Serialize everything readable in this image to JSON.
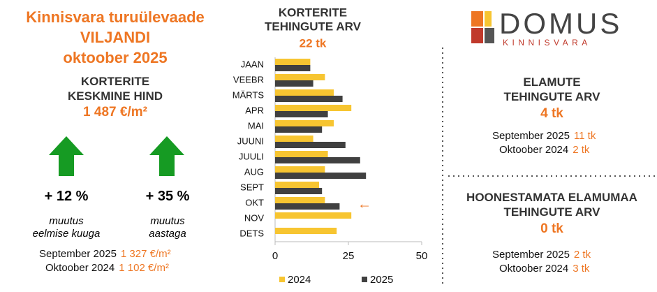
{
  "header": {
    "title_lines": [
      "Kinnisvara turuülevaade",
      "VILJANDI",
      "oktoober 2025"
    ]
  },
  "price": {
    "title_lines": [
      "KORTERITE",
      "KESKMINE HIND"
    ],
    "value": "1 487 €/m²",
    "changes": [
      {
        "value": "+ 12 %",
        "label_lines": [
          "muutus",
          "eelmise kuuga"
        ]
      },
      {
        "value": "+ 35 %",
        "label_lines": [
          "muutus",
          "aastaga"
        ]
      }
    ],
    "comparisons": [
      {
        "label": "September 2025",
        "value": "1 327 €/m²"
      },
      {
        "label": "Oktoober 2024",
        "value": "1 102 €/m²"
      }
    ]
  },
  "logo": {
    "name": "DOMUS",
    "sub": "KINNISVARA"
  },
  "houses": {
    "title_lines": [
      "ELAMUTE",
      "TEHINGUTE ARV"
    ],
    "value": "4 tk",
    "comparisons": [
      {
        "label": "September 2025",
        "value": "11 tk"
      },
      {
        "label": "Oktoober 2024",
        "value": "2 tk"
      }
    ]
  },
  "land": {
    "title_lines": [
      "HOONESTAMATA ELAMUMAA",
      "TEHINGUTE ARV"
    ],
    "value": "0 tk",
    "comparisons": [
      {
        "label": "September 2025",
        "value": "2 tk"
      },
      {
        "label": "Oktoober 2024",
        "value": "3 tk"
      }
    ]
  },
  "chart_data": {
    "type": "hbar",
    "title_lines": [
      "KORTERITE",
      "TEHINGUTE ARV"
    ],
    "subtitle": "22 tk",
    "categories": [
      "JAAN",
      "VEEBR",
      "MÄRTS",
      "APR",
      "MAI",
      "JUUNI",
      "JUULI",
      "AUG",
      "SEPT",
      "OKT",
      "NOV",
      "DETS"
    ],
    "series": [
      {
        "name": "2024",
        "color": "#f7c531",
        "values": [
          12,
          17,
          20,
          26,
          20,
          13,
          18,
          17,
          15,
          17,
          26,
          21
        ]
      },
      {
        "name": "2025",
        "color": "#404040",
        "values": [
          12,
          13,
          23,
          18,
          16,
          24,
          29,
          31,
          16,
          22,
          null,
          null
        ]
      }
    ],
    "xlim": [
      0,
      50
    ],
    "xticks": [
      0,
      25,
      50
    ],
    "annotation": "←",
    "annotation_category": 9,
    "legend": "bottom"
  }
}
